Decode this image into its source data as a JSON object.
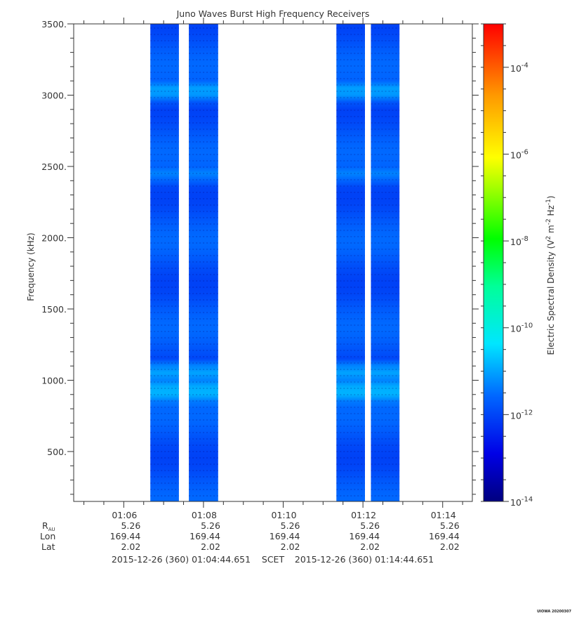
{
  "chart_data": {
    "type": "heatmap",
    "title": "Juno Waves Burst High Frequency Receivers",
    "ylabel": "Frequency (kHz)",
    "ylim": [
      150,
      3500
    ],
    "yticks": [
      500,
      1000,
      1500,
      2000,
      2500,
      3000,
      3500
    ],
    "ytick_labels": [
      "500.",
      "1000.",
      "1500.",
      "2000.",
      "2500.",
      "3000.",
      "3500."
    ],
    "xlim": [
      "01:04:44.651",
      "01:14:44.651"
    ],
    "xticks": [
      "01:06",
      "01:08",
      "01:10",
      "01:12",
      "01:14"
    ],
    "colorbar": {
      "label_main": "Electric Spectral Density (V",
      "label_sup1": "2",
      "label_mid": " m",
      "label_sup2": "-2",
      "label_mid2": " Hz",
      "label_sup3": "-1",
      "label_end": ")",
      "scale": "log",
      "range": [
        1e-14,
        0.001
      ],
      "ticks": [
        {
          "base": "10",
          "exp": "-4",
          "value": -4
        },
        {
          "base": "10",
          "exp": "-6",
          "value": -6
        },
        {
          "base": "10",
          "exp": "-8",
          "value": -8
        },
        {
          "base": "10",
          "exp": "-10",
          "value": -10
        },
        {
          "base": "10",
          "exp": "-12",
          "value": -12
        },
        {
          "base": "10",
          "exp": "-14",
          "value": -14
        }
      ]
    },
    "data_intervals": [
      {
        "start": "01:06:40",
        "end": "01:07:23"
      },
      {
        "start": "01:07:38",
        "end": "01:08:22"
      },
      {
        "start": "01:11:20",
        "end": "01:12:03"
      },
      {
        "start": "01:12:12",
        "end": "01:12:55"
      }
    ],
    "typical_log_density": -11.8,
    "bright_bands": [
      {
        "freq_khz": 3030,
        "log_density": -11.0
      },
      {
        "freq_khz": 2450,
        "log_density": -11.3
      },
      {
        "freq_khz": 1050,
        "log_density": -11.0
      },
      {
        "freq_khz": 920,
        "log_density": -10.8
      }
    ],
    "ephemeris": {
      "row_labels": {
        "r_main": "R",
        "r_sub": "AU",
        "lon": "Lon",
        "lat": "Lat"
      },
      "columns": [
        {
          "r": "5.26",
          "lon": "169.44",
          "lat": "2.02"
        },
        {
          "r": "5.26",
          "lon": "169.44",
          "lat": "2.02"
        },
        {
          "r": "5.26",
          "lon": "169.44",
          "lat": "2.02"
        },
        {
          "r": "5.26",
          "lon": "169.44",
          "lat": "2.02"
        },
        {
          "r": "5.26",
          "lon": "169.44",
          "lat": "2.02"
        }
      ]
    },
    "time_range": {
      "start": "2015-12-26 (360) 01:04:44.651",
      "mid": "SCET",
      "end": "2015-12-26 (360) 01:14:44.651"
    },
    "stamp": "UIOWA 20200307"
  }
}
